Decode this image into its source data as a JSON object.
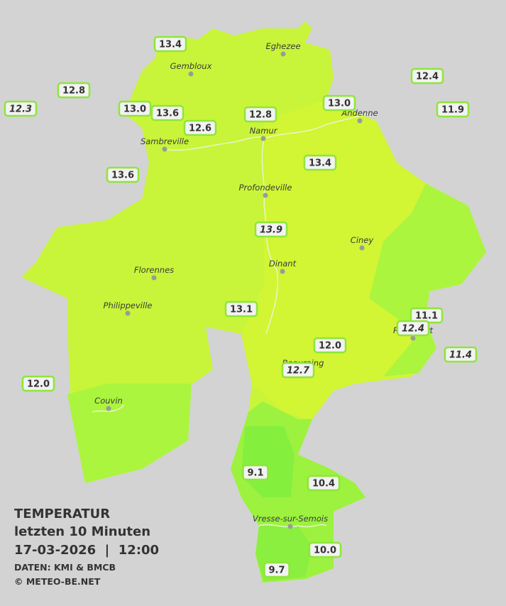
{
  "legend": {
    "title": "TEMPERATUR",
    "subtitle": "letzten 10 Minuten",
    "datetime": "17-03-2026  |  12:00",
    "source": "DATEN: KMI & BMCB",
    "copyright": "© METEO-BE.NET"
  },
  "towns": [
    {
      "name": "Eghezee"
    },
    {
      "name": "Gembloux"
    },
    {
      "name": "Andenne"
    },
    {
      "name": "Namur"
    },
    {
      "name": "Sambreville"
    },
    {
      "name": "Profondeville"
    },
    {
      "name": "Ciney"
    },
    {
      "name": "Dinant"
    },
    {
      "name": "Florennes"
    },
    {
      "name": "Philippeville"
    },
    {
      "name": "Rochefort"
    },
    {
      "name": "Beauraing"
    },
    {
      "name": "Couvin"
    },
    {
      "name": "Vresse-sur-Semois"
    }
  ],
  "stations": [
    {
      "value": "13.4",
      "italic": false
    },
    {
      "value": "12.8",
      "italic": false
    },
    {
      "value": "12.3",
      "italic": true
    },
    {
      "value": "13.0",
      "italic": false
    },
    {
      "value": "13.6",
      "italic": false
    },
    {
      "value": "12.6",
      "italic": false
    },
    {
      "value": "12.8",
      "italic": false
    },
    {
      "value": "13.0",
      "italic": false
    },
    {
      "value": "12.4",
      "italic": false
    },
    {
      "value": "11.9",
      "italic": false
    },
    {
      "value": "13.6",
      "italic": false
    },
    {
      "value": "13.4",
      "italic": false
    },
    {
      "value": "13.9",
      "italic": true
    },
    {
      "value": "13.1",
      "italic": false
    },
    {
      "value": "11.1",
      "italic": false
    },
    {
      "value": "12.4",
      "italic": true
    },
    {
      "value": "11.4",
      "italic": true
    },
    {
      "value": "12.0",
      "italic": false
    },
    {
      "value": "12.7",
      "italic": true
    },
    {
      "value": "12.0",
      "italic": false
    },
    {
      "value": "9.1",
      "italic": false
    },
    {
      "value": "10.4",
      "italic": false
    },
    {
      "value": "10.0",
      "italic": false
    },
    {
      "value": "9.7",
      "italic": false
    }
  ]
}
